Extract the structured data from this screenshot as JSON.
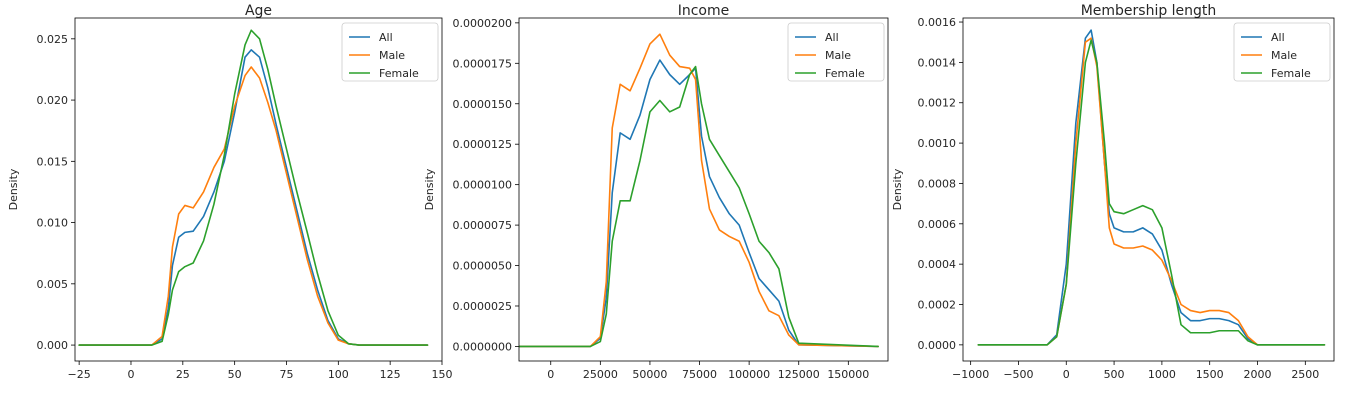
{
  "colors": {
    "All": "#1f77b4",
    "Male": "#ff7f0e",
    "Female": "#2ca02c"
  },
  "chart_data": [
    {
      "type": "line",
      "title": "Age",
      "xlabel": "",
      "ylabel": "Density",
      "xlim": [
        -27,
        150
      ],
      "ylim": [
        -0.0013,
        0.0267
      ],
      "xticks": [
        -25,
        0,
        25,
        50,
        75,
        100,
        125,
        150
      ],
      "xtick_labels": [
        "−25",
        "0",
        "25",
        "50",
        "75",
        "100",
        "125",
        "150"
      ],
      "yticks": [
        0,
        0.005,
        0.01,
        0.015,
        0.02,
        0.025
      ],
      "ytick_labels": [
        "0.000",
        "0.005",
        "0.010",
        "0.015",
        "0.020",
        "0.025"
      ],
      "legend": "top-right",
      "series": [
        {
          "name": "All",
          "x": [
            -25,
            10,
            15,
            18,
            20,
            23,
            26,
            30,
            35,
            40,
            45,
            50,
            55,
            58,
            62,
            66,
            70,
            75,
            80,
            85,
            90,
            95,
            100,
            105,
            110,
            143
          ],
          "y": [
            0,
            0,
            0.0005,
            0.003,
            0.0065,
            0.0088,
            0.0092,
            0.0093,
            0.0105,
            0.0125,
            0.015,
            0.019,
            0.0235,
            0.0241,
            0.0235,
            0.021,
            0.018,
            0.0145,
            0.011,
            0.0075,
            0.0045,
            0.002,
            0.0005,
            0.0001,
            0,
            0
          ]
        },
        {
          "name": "Male",
          "x": [
            -25,
            10,
            15,
            18,
            20,
            23,
            26,
            30,
            35,
            40,
            45,
            50,
            55,
            58,
            62,
            66,
            70,
            75,
            80,
            85,
            90,
            95,
            100,
            105,
            110,
            143
          ],
          "y": [
            0,
            0,
            0.0007,
            0.004,
            0.008,
            0.0107,
            0.0114,
            0.0112,
            0.0125,
            0.0145,
            0.016,
            0.0195,
            0.022,
            0.0227,
            0.0218,
            0.0198,
            0.0175,
            0.014,
            0.0105,
            0.007,
            0.004,
            0.0018,
            0.0004,
            0.0001,
            0,
            0
          ]
        },
        {
          "name": "Female",
          "x": [
            -25,
            10,
            15,
            18,
            20,
            23,
            26,
            30,
            35,
            40,
            45,
            50,
            55,
            58,
            62,
            66,
            70,
            75,
            80,
            85,
            90,
            95,
            100,
            105,
            110,
            143
          ],
          "y": [
            0,
            0,
            0.0003,
            0.0025,
            0.0045,
            0.006,
            0.0064,
            0.0067,
            0.0085,
            0.0115,
            0.0155,
            0.0205,
            0.0245,
            0.0257,
            0.025,
            0.0225,
            0.0195,
            0.016,
            0.0125,
            0.0092,
            0.0058,
            0.0028,
            0.0008,
            0.0001,
            0,
            0
          ]
        }
      ]
    },
    {
      "type": "line",
      "title": "Income",
      "xlabel": "",
      "ylabel": "Density",
      "xlim": [
        -16000,
        170000
      ],
      "ylim": [
        -9e-07,
        2.03e-05
      ],
      "xticks": [
        0,
        25000,
        50000,
        75000,
        100000,
        125000,
        150000
      ],
      "xtick_labels": [
        "0",
        "25000",
        "50000",
        "75000",
        "100000",
        "125000",
        "150000"
      ],
      "yticks": [
        0,
        2.5e-06,
        5e-06,
        7.5e-06,
        1e-05,
        1.25e-05,
        1.5e-05,
        1.75e-05,
        2e-05
      ],
      "ytick_labels": [
        "0.0000000",
        "0.0000025",
        "0.0000050",
        "0.0000075",
        "0.0000100",
        "0.0000125",
        "0.0000150",
        "0.0000175",
        "0.0000200"
      ],
      "legend": "top-right",
      "series": [
        {
          "name": "All",
          "x": [
            -16000,
            20000,
            25000,
            28000,
            31000,
            35000,
            40000,
            45000,
            50000,
            55000,
            60000,
            65000,
            70000,
            73000,
            76000,
            80000,
            85000,
            90000,
            95000,
            100000,
            105000,
            110000,
            115000,
            120000,
            125000,
            165000
          ],
          "y": [
            0,
            0,
            5e-07,
            3e-06,
            9.5e-06,
            1.32e-05,
            1.28e-05,
            1.43e-05,
            1.65e-05,
            1.77e-05,
            1.68e-05,
            1.62e-05,
            1.68e-05,
            1.72e-05,
            1.3e-05,
            1.05e-05,
            9.2e-06,
            8.2e-06,
            7.5e-06,
            5.8e-06,
            4.2e-06,
            3.5e-06,
            2.8e-06,
            1e-06,
            1e-07,
            0
          ]
        },
        {
          "name": "Male",
          "x": [
            -16000,
            20000,
            25000,
            28000,
            31000,
            35000,
            40000,
            45000,
            50000,
            55000,
            60000,
            65000,
            70000,
            73000,
            76000,
            80000,
            85000,
            90000,
            95000,
            100000,
            105000,
            110000,
            115000,
            120000,
            125000,
            165000
          ],
          "y": [
            0,
            0,
            6e-07,
            4e-06,
            1.35e-05,
            1.62e-05,
            1.58e-05,
            1.72e-05,
            1.87e-05,
            1.93e-05,
            1.8e-05,
            1.73e-05,
            1.72e-05,
            1.65e-05,
            1.15e-05,
            8.5e-06,
            7.2e-06,
            6.8e-06,
            6.5e-06,
            5.2e-06,
            3.4e-06,
            2.2e-06,
            1.9e-06,
            7e-07,
            1e-07,
            0
          ]
        },
        {
          "name": "Female",
          "x": [
            -16000,
            20000,
            25000,
            28000,
            31000,
            35000,
            40000,
            45000,
            50000,
            55000,
            60000,
            65000,
            70000,
            73000,
            76000,
            80000,
            85000,
            90000,
            95000,
            100000,
            105000,
            110000,
            115000,
            120000,
            125000,
            165000
          ],
          "y": [
            0,
            0,
            3e-07,
            2e-06,
            6.5e-06,
            9e-06,
            9e-06,
            1.15e-05,
            1.45e-05,
            1.52e-05,
            1.45e-05,
            1.48e-05,
            1.68e-05,
            1.73e-05,
            1.5e-05,
            1.28e-05,
            1.18e-05,
            1.08e-05,
            9.8e-06,
            8.2e-06,
            6.5e-06,
            5.8e-06,
            4.8e-06,
            1.8e-06,
            2e-07,
            0
          ]
        }
      ]
    },
    {
      "type": "line",
      "title": "Membership length",
      "xlabel": "",
      "ylabel": "Density",
      "xlim": [
        -1080,
        2800
      ],
      "ylim": [
        -8e-05,
        0.00162
      ],
      "xticks": [
        -1000,
        -500,
        0,
        500,
        1000,
        1500,
        2000,
        2500
      ],
      "xtick_labels": [
        "−1000",
        "−500",
        "0",
        "500",
        "1000",
        "1500",
        "2000",
        "2500"
      ],
      "yticks": [
        0,
        0.0002,
        0.0004,
        0.0006,
        0.0008,
        0.001,
        0.0012,
        0.0014,
        0.0016
      ],
      "ytick_labels": [
        "0.0000",
        "0.0002",
        "0.0004",
        "0.0006",
        "0.0008",
        "0.0010",
        "0.0012",
        "0.0014",
        "0.0016"
      ],
      "legend": "top-right",
      "series": [
        {
          "name": "All",
          "x": [
            -920,
            -200,
            -100,
            0,
            100,
            200,
            260,
            320,
            400,
            450,
            500,
            600,
            700,
            800,
            900,
            1000,
            1100,
            1200,
            1300,
            1400,
            1500,
            1600,
            1700,
            1800,
            1900,
            2000,
            2700
          ],
          "y": [
            0,
            0,
            5e-05,
            0.0004,
            0.0011,
            0.00152,
            0.00156,
            0.0014,
            0.0009,
            0.00065,
            0.00058,
            0.00056,
            0.00056,
            0.00058,
            0.00055,
            0.00047,
            0.0003,
            0.00016,
            0.00012,
            0.00012,
            0.00013,
            0.00013,
            0.00012,
            0.0001,
            3e-05,
            0,
            0
          ]
        },
        {
          "name": "Male",
          "x": [
            -920,
            -200,
            -100,
            0,
            100,
            200,
            260,
            320,
            400,
            450,
            500,
            600,
            700,
            800,
            900,
            1000,
            1100,
            1200,
            1300,
            1400,
            1500,
            1600,
            1700,
            1800,
            1900,
            2000,
            2700
          ],
          "y": [
            0,
            0,
            4e-05,
            0.0003,
            0.001,
            0.0015,
            0.00152,
            0.00138,
            0.0009,
            0.00058,
            0.0005,
            0.00048,
            0.00048,
            0.00049,
            0.00047,
            0.00042,
            0.00032,
            0.0002,
            0.00017,
            0.00016,
            0.00017,
            0.00017,
            0.00016,
            0.00012,
            4e-05,
            0,
            0
          ]
        },
        {
          "name": "Female",
          "x": [
            -920,
            -200,
            -100,
            0,
            100,
            200,
            260,
            320,
            400,
            450,
            500,
            600,
            700,
            800,
            900,
            1000,
            1100,
            1200,
            1300,
            1400,
            1500,
            1600,
            1700,
            1800,
            1900,
            2000,
            2700
          ],
          "y": [
            0,
            0,
            4e-05,
            0.0003,
            0.0009,
            0.0014,
            0.00151,
            0.0014,
            0.001,
            0.0007,
            0.00066,
            0.00065,
            0.00067,
            0.00069,
            0.00067,
            0.00058,
            0.00035,
            0.0001,
            6e-05,
            6e-05,
            6e-05,
            7e-05,
            7e-05,
            7e-05,
            2e-05,
            0,
            0
          ]
        }
      ]
    }
  ]
}
